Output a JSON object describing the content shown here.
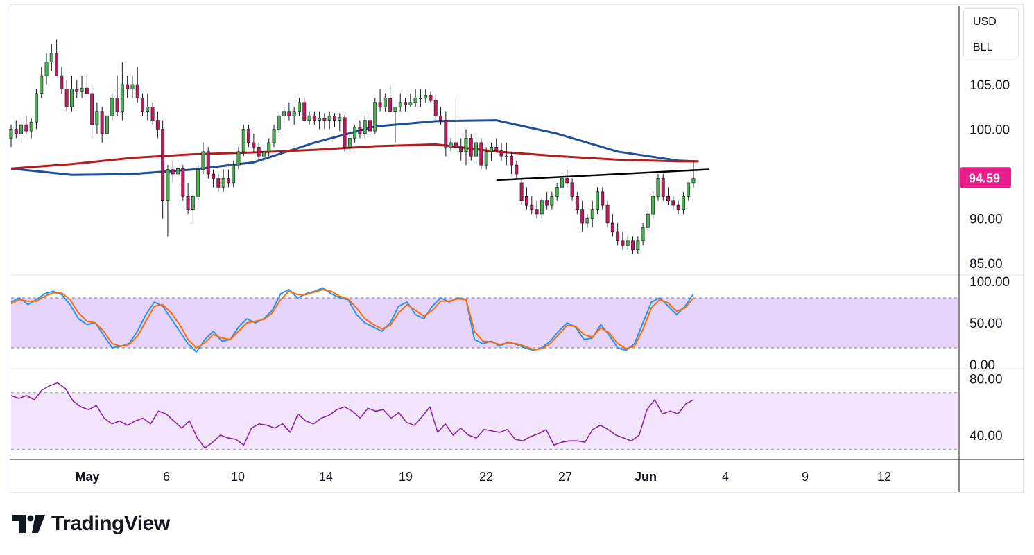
{
  "price_axis": {
    "main_ticks": [
      "105.00",
      "100.00",
      "90.00",
      "85.00"
    ],
    "last_price": "94.59",
    "last_price_color": "#e91e8c",
    "stoch_ticks": [
      "100.00",
      "50.00",
      "0.00"
    ],
    "rsi_ticks": [
      "80.00",
      "40.00"
    ]
  },
  "currency_box": {
    "currency": "USD",
    "symbol": "BLL"
  },
  "date_axis": {
    "labels": [
      {
        "text": "May",
        "month": true
      },
      {
        "text": "6",
        "month": false
      },
      {
        "text": "10",
        "month": false
      },
      {
        "text": "14",
        "month": false
      },
      {
        "text": "19",
        "month": false
      },
      {
        "text": "22",
        "month": false
      },
      {
        "text": "27",
        "month": false
      },
      {
        "text": "Jun",
        "month": true
      },
      {
        "text": "4",
        "month": false
      },
      {
        "text": "9",
        "month": false
      },
      {
        "text": "12",
        "month": false
      }
    ]
  },
  "brand": {
    "name": "TradingView",
    "logo": "tradingview-logo-icon"
  },
  "colors": {
    "up": "#4caf50",
    "down": "#c2185b",
    "ma_fast": "#1e4f9c",
    "ma_slow": "#b71c1c",
    "stoch_k": "#2196f3",
    "stoch_d": "#ff6d00",
    "rsi": "#8e24aa",
    "stoch_band": "#e7d4fb",
    "rsi_band": "#f3e5fc",
    "trendline": "#000000"
  },
  "chart_data": [
    {
      "type": "candlestick",
      "ylim": [
        84.5,
        110.5
      ],
      "gridlines": false,
      "candles": [
        [
          99.0,
          100.5,
          98.0,
          100.0
        ],
        [
          100.0,
          101.0,
          99.0,
          99.5
        ],
        [
          99.5,
          101.0,
          98.5,
          100.5
        ],
        [
          100.5,
          101.5,
          99.5,
          99.8
        ],
        [
          99.8,
          101.2,
          99.0,
          100.8
        ],
        [
          100.8,
          104.5,
          100.0,
          104.0
        ],
        [
          104.0,
          107.0,
          103.5,
          106.0
        ],
        [
          106.0,
          108.5,
          105.0,
          107.5
        ],
        [
          107.5,
          109.5,
          106.5,
          108.5
        ],
        [
          108.5,
          110.0,
          106.0,
          106.0
        ],
        [
          106.0,
          107.0,
          104.0,
          104.5
        ],
        [
          104.5,
          105.5,
          102.0,
          102.5
        ],
        [
          102.5,
          106.0,
          102.0,
          104.5
        ],
        [
          104.5,
          105.5,
          103.5,
          104.2
        ],
        [
          104.2,
          106.0,
          103.5,
          104.6
        ],
        [
          104.6,
          106.0,
          103.8,
          104.0
        ],
        [
          104.0,
          105.0,
          99.0,
          100.5
        ],
        [
          100.5,
          103.0,
          99.5,
          102.0
        ],
        [
          102.0,
          102.5,
          98.5,
          99.5
        ],
        [
          99.5,
          102.0,
          99.0,
          101.5
        ],
        [
          101.5,
          104.0,
          101.0,
          103.5
        ],
        [
          103.5,
          106.0,
          101.5,
          102.0
        ],
        [
          102.0,
          107.5,
          101.0,
          105.0
        ],
        [
          105.0,
          106.0,
          103.5,
          104.5
        ],
        [
          104.5,
          106.0,
          103.5,
          105.0
        ],
        [
          105.0,
          107.0,
          103.0,
          103.5
        ],
        [
          103.5,
          104.0,
          101.5,
          102.0
        ],
        [
          102.0,
          104.0,
          101.0,
          102.5
        ],
        [
          102.5,
          103.0,
          100.5,
          101.0
        ],
        [
          101.0,
          102.0,
          99.0,
          100.0
        ],
        [
          100.0,
          101.0,
          90.0,
          92.0
        ],
        [
          92.0,
          96.0,
          88.0,
          95.5
        ],
        [
          95.5,
          96.5,
          94.0,
          95.0
        ],
        [
          95.0,
          96.5,
          93.5,
          95.6
        ],
        [
          95.6,
          96.0,
          92.0,
          92.5
        ],
        [
          92.5,
          94.0,
          90.5,
          91.0
        ],
        [
          91.0,
          93.0,
          89.5,
          92.5
        ],
        [
          92.5,
          96.0,
          92.0,
          95.5
        ],
        [
          95.5,
          98.5,
          95.0,
          97.5
        ],
        [
          97.5,
          98.0,
          94.5,
          95.0
        ],
        [
          95.0,
          95.5,
          93.5,
          94.5
        ],
        [
          94.5,
          95.0,
          93.0,
          93.5
        ],
        [
          93.5,
          95.5,
          93.0,
          94.5
        ],
        [
          94.5,
          95.5,
          93.5,
          94.0
        ],
        [
          94.0,
          96.5,
          93.5,
          96.0
        ],
        [
          96.0,
          98.0,
          95.5,
          97.5
        ],
        [
          97.5,
          100.5,
          97.0,
          100.0
        ],
        [
          100.0,
          100.5,
          98.0,
          98.5
        ],
        [
          98.5,
          99.5,
          97.5,
          98.0
        ],
        [
          98.0,
          98.5,
          96.5,
          97.0
        ],
        [
          97.0,
          98.0,
          96.0,
          97.5
        ],
        [
          97.5,
          99.0,
          97.0,
          98.5
        ],
        [
          98.5,
          100.5,
          98.0,
          100.0
        ],
        [
          100.0,
          102.0,
          99.5,
          101.5
        ],
        [
          101.5,
          102.5,
          100.5,
          102.0
        ],
        [
          102.0,
          103.0,
          101.0,
          101.5
        ],
        [
          101.5,
          102.5,
          100.5,
          102.0
        ],
        [
          102.0,
          103.5,
          101.5,
          103.0
        ],
        [
          103.0,
          103.5,
          101.0,
          101.0
        ],
        [
          101.0,
          102.0,
          100.5,
          101.5
        ],
        [
          101.5,
          102.0,
          100.5,
          101.0
        ],
        [
          101.0,
          102.0,
          100.0,
          101.2
        ],
        [
          101.2,
          101.8,
          100.0,
          101.0
        ],
        [
          101.0,
          102.0,
          100.0,
          101.5
        ],
        [
          101.5,
          101.8,
          100.2,
          101.0
        ],
        [
          101.0,
          101.8,
          99.8,
          101.3
        ],
        [
          101.3,
          101.6,
          97.5,
          98.0
        ],
        [
          98.0,
          99.5,
          97.5,
          99.0
        ],
        [
          99.0,
          100.5,
          98.5,
          100.2
        ],
        [
          100.2,
          101.0,
          99.0,
          99.5
        ],
        [
          99.5,
          101.5,
          99.0,
          101.0
        ],
        [
          101.0,
          101.5,
          99.5,
          99.8
        ],
        [
          99.8,
          103.5,
          99.5,
          103.0
        ],
        [
          103.0,
          104.5,
          102.0,
          102.5
        ],
        [
          102.5,
          104.0,
          102.0,
          103.5
        ],
        [
          103.5,
          105.0,
          102.0,
          102.0
        ],
        [
          102.0,
          102.5,
          98.5,
          102.5
        ],
        [
          102.5,
          104.0,
          102.0,
          103.0
        ],
        [
          103.0,
          103.5,
          102.0,
          102.7
        ],
        [
          102.7,
          104.0,
          102.5,
          103.0
        ],
        [
          103.0,
          104.5,
          102.5,
          103.5
        ],
        [
          103.5,
          104.5,
          102.5,
          103.5
        ],
        [
          103.5,
          104.5,
          103.0,
          103.8
        ],
        [
          103.8,
          104.2,
          103.0,
          103.2
        ],
        [
          103.2,
          103.8,
          101.0,
          101.5
        ],
        [
          101.5,
          102.5,
          100.5,
          101.0
        ],
        [
          101.0,
          102.0,
          97.0,
          98.0
        ],
        [
          98.0,
          99.0,
          97.5,
          98.5
        ],
        [
          98.5,
          103.5,
          98.0,
          98.0
        ],
        [
          98.0,
          99.0,
          96.5,
          97.5
        ],
        [
          97.5,
          100.0,
          96.0,
          99.0
        ],
        [
          99.0,
          99.5,
          96.5,
          97.0
        ],
        [
          97.0,
          99.5,
          96.0,
          98.5
        ],
        [
          98.5,
          99.0,
          95.5,
          96.0
        ],
        [
          96.0,
          98.0,
          95.5,
          97.5
        ],
        [
          97.5,
          98.5,
          96.5,
          98.0
        ],
        [
          98.0,
          99.0,
          97.5,
          97.6
        ],
        [
          97.6,
          98.5,
          96.5,
          97.0
        ],
        [
          97.0,
          98.5,
          96.0,
          97.0
        ],
        [
          97.0,
          97.5,
          95.0,
          96.0
        ],
        [
          96.0,
          96.5,
          94.5,
          95.0
        ],
        [
          94.0,
          94.5,
          91.5,
          92.0
        ],
        [
          92.5,
          93.5,
          91.0,
          91.5
        ],
        [
          91.5,
          92.5,
          90.5,
          91.0
        ],
        [
          91.0,
          92.0,
          90.0,
          90.5
        ],
        [
          90.5,
          92.5,
          90.0,
          92.0
        ],
        [
          92.0,
          93.0,
          91.0,
          91.5
        ],
        [
          91.5,
          93.0,
          91.0,
          92.5
        ],
        [
          92.5,
          94.0,
          92.0,
          93.5
        ],
        [
          93.5,
          95.0,
          93.0,
          94.5
        ],
        [
          94.5,
          95.5,
          93.5,
          94.0
        ],
        [
          94.0,
          94.5,
          92.0,
          92.5
        ],
        [
          92.5,
          93.0,
          90.5,
          91.0
        ],
        [
          91.0,
          92.0,
          88.5,
          89.5
        ],
        [
          89.5,
          90.5,
          89.0,
          90.0
        ],
        [
          90.0,
          92.0,
          89.0,
          91.0
        ],
        [
          91.0,
          93.5,
          90.5,
          93.0
        ],
        [
          93.0,
          93.5,
          91.0,
          91.5
        ],
        [
          91.5,
          92.0,
          89.0,
          89.5
        ],
        [
          89.5,
          90.5,
          88.0,
          88.5
        ],
        [
          88.5,
          89.5,
          87.0,
          87.5
        ],
        [
          87.5,
          88.5,
          86.5,
          87.0
        ],
        [
          87.0,
          88.0,
          86.5,
          87.5
        ],
        [
          87.5,
          88.0,
          86.0,
          86.5
        ],
        [
          86.5,
          88.0,
          86.0,
          87.5
        ],
        [
          87.5,
          89.5,
          87.0,
          89.0
        ],
        [
          89.0,
          91.0,
          88.5,
          90.5
        ],
        [
          90.5,
          93.0,
          90.0,
          92.5
        ],
        [
          92.5,
          95.0,
          92.0,
          94.5
        ],
        [
          94.5,
          95.0,
          92.0,
          92.5
        ],
        [
          92.5,
          93.5,
          91.5,
          92.0
        ],
        [
          92.0,
          92.5,
          91.0,
          91.5
        ],
        [
          91.5,
          92.0,
          90.5,
          91.0
        ],
        [
          91.0,
          93.0,
          90.5,
          92.5
        ],
        [
          92.5,
          94.0,
          92.0,
          94.0
        ],
        [
          94.0,
          96.5,
          93.5,
          94.5
        ]
      ],
      "moving_averages": [
        {
          "name": "",
          "points": [
            [
              0,
              95.6
            ],
            [
              12,
              94.9
            ],
            [
              24,
              95.0
            ],
            [
              36,
              95.5
            ],
            [
              48,
              96.3
            ],
            [
              60,
              98.5
            ],
            [
              72,
              100.3
            ],
            [
              84,
              100.9
            ],
            [
              96,
              101.0
            ],
            [
              108,
              99.5
            ],
            [
              120,
              97.5
            ],
            [
              132,
              96.5
            ],
            [
              136,
              96.4
            ]
          ]
        },
        {
          "name": "",
          "points": [
            [
              0,
              95.6
            ],
            [
              12,
              96.1
            ],
            [
              24,
              96.8
            ],
            [
              36,
              97.2
            ],
            [
              48,
              97.4
            ],
            [
              60,
              97.7
            ],
            [
              72,
              98.1
            ],
            [
              84,
              98.3
            ],
            [
              96,
              97.5
            ],
            [
              108,
              97.0
            ],
            [
              120,
              96.6
            ],
            [
              132,
              96.4
            ],
            [
              136,
              96.4
            ]
          ]
        }
      ],
      "trendline": {
        "from": [
          96,
          94.3
        ],
        "to": [
          138,
          95.5
        ]
      }
    },
    {
      "type": "line",
      "indicator": "stochastic",
      "ylim": [
        0,
        100
      ],
      "band": [
        20,
        80
      ],
      "series": [
        {
          "name": "",
          "values": [
            75,
            80,
            72,
            78,
            85,
            88,
            84,
            72,
            55,
            48,
            50,
            35,
            20,
            22,
            25,
            40,
            60,
            75,
            70,
            55,
            40,
            25,
            15,
            30,
            40,
            28,
            30,
            45,
            55,
            50,
            55,
            65,
            85,
            90,
            80,
            85,
            88,
            92,
            85,
            80,
            78,
            60,
            50,
            45,
            40,
            50,
            70,
            75,
            60,
            55,
            70,
            80,
            75,
            80,
            78,
            30,
            25,
            28,
            22,
            27,
            24,
            20,
            17,
            20,
            28,
            40,
            50,
            45,
            30,
            32,
            48,
            35,
            20,
            17,
            25,
            50,
            75,
            80,
            70,
            60,
            70,
            85
          ]
        },
        {
          "name": "",
          "values": [
            73,
            78,
            76,
            76,
            82,
            86,
            86,
            78,
            62,
            52,
            50,
            40,
            25,
            22,
            24,
            34,
            52,
            70,
            72,
            62,
            48,
            30,
            20,
            26,
            36,
            32,
            30,
            40,
            50,
            52,
            54,
            62,
            78,
            88,
            84,
            84,
            87,
            90,
            88,
            82,
            79,
            68,
            55,
            48,
            43,
            47,
            62,
            72,
            65,
            58,
            65,
            76,
            76,
            79,
            78,
            40,
            28,
            27,
            24,
            26,
            25,
            22,
            18,
            19,
            25,
            36,
            47,
            46,
            36,
            33,
            44,
            38,
            25,
            19,
            22,
            42,
            68,
            78,
            74,
            64,
            68,
            80
          ]
        }
      ]
    },
    {
      "type": "line",
      "indicator": "rsi",
      "ylim": [
        28,
        82
      ],
      "band": [
        30,
        70
      ],
      "series": [
        {
          "name": "",
          "values": [
            68,
            66,
            68,
            65,
            72,
            75,
            77,
            73,
            64,
            60,
            58,
            61,
            52,
            48,
            50,
            47,
            50,
            52,
            48,
            57,
            55,
            50,
            45,
            50,
            38,
            31,
            35,
            40,
            38,
            37,
            33,
            45,
            48,
            47,
            45,
            48,
            42,
            55,
            50,
            48,
            52,
            54,
            58,
            60,
            57,
            52,
            59,
            57,
            58,
            52,
            56,
            49,
            47,
            53,
            60,
            42,
            48,
            40,
            45,
            40,
            38,
            44,
            43,
            42,
            44,
            37,
            36,
            39,
            41,
            44,
            33,
            35,
            36,
            36,
            35,
            44,
            47,
            44,
            40,
            38,
            36,
            40,
            58,
            65,
            55,
            57,
            55,
            62,
            65
          ]
        }
      ]
    }
  ]
}
